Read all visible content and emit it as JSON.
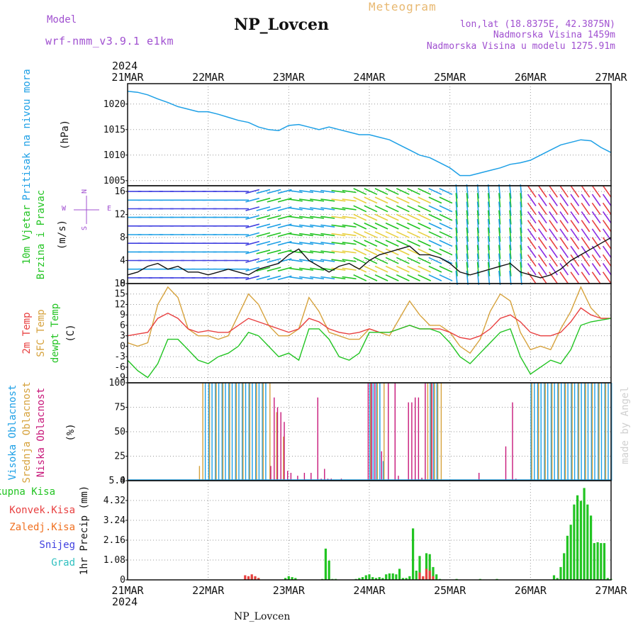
{
  "header": {
    "model_label": "Model",
    "model_name": "wrf-nmm_v3.9.1 e1km",
    "station": "NP_Lovcen",
    "product": "Meteogram",
    "lonlat": "lon,lat (18.8375E, 42.3875N)",
    "elevation": "Nadmorska Visina 1459m",
    "model_elevation": "Nadmorska Visina u modelu 1275.91m",
    "year_top": "2024",
    "year_bottom": "2024",
    "footer_station": "NP_Lovcen",
    "credit": "made by Angel"
  },
  "colors": {
    "pressure": "#1ea0e6",
    "temp2m": "#e84040",
    "sfc": "#d6a23c",
    "dewpt": "#22c422",
    "high": "#1ea0e6",
    "mid": "#d6a23c",
    "low": "#c8187a",
    "total": "#22c422",
    "conv": "#e84040",
    "frz": "#f07020",
    "snow": "#4040e0",
    "grad": "#30c0c0",
    "model": "#a050d0",
    "meteo": "#e8b870",
    "grid": "#999999",
    "credit": "#d0d0d0"
  },
  "chart_data": [
    {
      "type": "line",
      "title": "Pritisak na nivou mora",
      "ylabel": "(hPa)",
      "xlim": [
        0,
        144
      ],
      "ylim": [
        1004,
        1024
      ],
      "yticks": [
        1005,
        1010,
        1015,
        1020
      ],
      "xticks": [
        "21MAR",
        "22MAR",
        "23MAR",
        "24MAR",
        "25MAR",
        "26MAR",
        "27MAR"
      ],
      "series": [
        {
          "name": "Pritisak na nivou mora",
          "x": [
            0,
            3,
            6,
            9,
            12,
            15,
            18,
            21,
            24,
            27,
            30,
            33,
            36,
            39,
            42,
            45,
            48,
            51,
            54,
            57,
            60,
            63,
            66,
            69,
            72,
            75,
            78,
            81,
            84,
            87,
            90,
            93,
            96,
            99,
            102,
            105,
            108,
            111,
            114,
            117,
            120,
            123,
            126,
            129,
            132,
            135,
            138,
            141,
            144
          ],
          "y": [
            1022.5,
            1022.3,
            1021.8,
            1021,
            1020.3,
            1019.5,
            1019,
            1018.5,
            1018.5,
            1018,
            1017.4,
            1016.8,
            1016.4,
            1015.5,
            1015,
            1014.8,
            1015.8,
            1016,
            1015.5,
            1015,
            1015.5,
            1015,
            1014.5,
            1014,
            1014,
            1013.5,
            1013,
            1012,
            1011,
            1010,
            1009.5,
            1008.5,
            1007.5,
            1006,
            1006,
            1006.5,
            1007,
            1007.5,
            1008.2,
            1008.5,
            1009,
            1010,
            1011,
            1012,
            1012.5,
            1013,
            1012.8,
            1011.5,
            1010.5
          ]
        }
      ]
    },
    {
      "type": "line",
      "title": "10m Vjetar Brzina i Pravac",
      "ylabel": "(m/s)",
      "compass": [
        "N",
        "E",
        "S",
        "W"
      ],
      "ylim": [
        0,
        17
      ],
      "yticks": [
        0,
        4,
        8,
        12,
        16
      ],
      "series": [
        {
          "name": "10m Vjetar",
          "x": [
            0,
            3,
            6,
            9,
            12,
            15,
            18,
            21,
            24,
            27,
            30,
            33,
            36,
            39,
            42,
            45,
            48,
            51,
            54,
            57,
            60,
            63,
            66,
            69,
            72,
            75,
            78,
            81,
            84,
            87,
            90,
            93,
            96,
            99,
            102,
            105,
            108,
            111,
            114,
            117,
            120,
            123,
            126,
            129,
            132,
            135,
            138,
            141,
            144
          ],
          "y": [
            1.5,
            2,
            3,
            3.5,
            2.5,
            3,
            2,
            2,
            1.5,
            2,
            2.5,
            2,
            1.5,
            2.5,
            3,
            3.5,
            5,
            6,
            4,
            3,
            2,
            3,
            3.5,
            2.5,
            4,
            5,
            5.5,
            6,
            6.5,
            5,
            5,
            4.5,
            3.5,
            2,
            1.5,
            2,
            2.5,
            3,
            3.5,
            2,
            1.5,
            1,
            1.5,
            2.5,
            4,
            5,
            6,
            7,
            8
          ]
        }
      ]
    },
    {
      "type": "line",
      "ylabel": "(C)",
      "ylim": [
        -10.5,
        18
      ],
      "yticks": [
        -9,
        -6,
        -3,
        0,
        3,
        6,
        9,
        12,
        15,
        18
      ],
      "series": [
        {
          "name": "2m Temp",
          "x": [
            0,
            3,
            6,
            9,
            12,
            15,
            18,
            21,
            24,
            27,
            30,
            33,
            36,
            39,
            42,
            45,
            48,
            51,
            54,
            57,
            60,
            63,
            66,
            69,
            72,
            75,
            78,
            81,
            84,
            87,
            90,
            93,
            96,
            99,
            102,
            105,
            108,
            111,
            114,
            117,
            120,
            123,
            126,
            129,
            132,
            135,
            138,
            141,
            144
          ],
          "y": [
            3,
            3.5,
            4,
            8,
            9.5,
            8,
            5,
            4,
            4.5,
            4,
            4,
            6,
            8,
            7,
            6,
            5,
            4,
            5,
            8,
            7,
            5,
            4,
            3.5,
            4,
            5,
            4,
            4,
            5,
            6,
            5,
            5,
            5,
            4,
            2.5,
            2,
            3,
            5,
            8,
            9,
            7,
            4,
            3,
            3,
            4,
            7,
            11,
            9,
            8,
            8
          ]
        },
        {
          "name": "SFC Temp",
          "x": [
            0,
            3,
            6,
            9,
            12,
            15,
            18,
            21,
            24,
            27,
            30,
            33,
            36,
            39,
            42,
            45,
            48,
            51,
            54,
            57,
            60,
            63,
            66,
            69,
            72,
            75,
            78,
            81,
            84,
            87,
            90,
            93,
            96,
            99,
            102,
            105,
            108,
            111,
            114,
            117,
            120,
            123,
            126,
            129,
            132,
            135,
            138,
            141,
            144
          ],
          "y": [
            1,
            0,
            1,
            12,
            17,
            14,
            5,
            3,
            3,
            2,
            3,
            9,
            15,
            12,
            6,
            3,
            3,
            5,
            14,
            10,
            4,
            3,
            2,
            2,
            5,
            4,
            3,
            8,
            13,
            9,
            6,
            6,
            4,
            0,
            -2,
            2,
            10,
            15,
            13,
            4,
            -1,
            0,
            -1,
            5,
            10,
            17,
            11,
            8,
            8
          ]
        },
        {
          "name": "dewpt Temp",
          "x": [
            0,
            3,
            6,
            9,
            12,
            15,
            18,
            21,
            24,
            27,
            30,
            33,
            36,
            39,
            42,
            45,
            48,
            51,
            54,
            57,
            60,
            63,
            66,
            69,
            72,
            75,
            78,
            81,
            84,
            87,
            90,
            93,
            96,
            99,
            102,
            105,
            108,
            111,
            114,
            117,
            120,
            123,
            126,
            129,
            132,
            135,
            138,
            141,
            144
          ],
          "y": [
            -4,
            -7,
            -9,
            -5,
            2,
            2,
            -1,
            -4,
            -5,
            -3,
            -2,
            0,
            4,
            3,
            0,
            -3,
            -2,
            -4,
            5,
            5,
            2,
            -3,
            -4,
            -2,
            4,
            4,
            4,
            5,
            6,
            5,
            5,
            4,
            1,
            -3,
            -5,
            -2,
            1,
            4,
            5,
            -3,
            -8,
            -6,
            -4,
            -5,
            -1,
            6,
            7,
            7.5,
            8
          ]
        }
      ]
    },
    {
      "type": "bar",
      "ylabel": "(%)",
      "ylim": [
        0,
        100
      ],
      "yticks": [
        0,
        25,
        50,
        75,
        100
      ],
      "series": [
        {
          "name": "Visoka Oblacnost",
          "x": [
            21,
            22,
            23,
            24,
            25,
            26,
            27,
            28,
            29,
            30,
            31,
            32,
            33,
            34,
            35,
            36,
            37,
            38,
            39,
            40,
            41,
            42,
            72,
            73,
            74,
            75,
            76,
            86,
            87,
            88,
            89,
            90,
            91,
            92,
            120,
            121,
            122,
            123,
            124,
            125,
            126,
            127,
            128,
            129,
            130,
            131,
            132,
            133,
            134,
            135,
            136,
            137,
            138,
            139,
            140,
            141,
            142,
            143,
            144
          ],
          "y": [
            0,
            0,
            100,
            100,
            100,
            100,
            100,
            100,
            100,
            100,
            100,
            100,
            100,
            100,
            100,
            100,
            100,
            100,
            100,
            100,
            100,
            0,
            100,
            100,
            100,
            100,
            20,
            0,
            0,
            0,
            0,
            100,
            100,
            100,
            100,
            100,
            100,
            100,
            100,
            100,
            100,
            100,
            100,
            100,
            100,
            100,
            100,
            100,
            100,
            100,
            100,
            100,
            100,
            100,
            100,
            100,
            100,
            100,
            100
          ]
        },
        {
          "name": "Srednja Oblacnost",
          "x": [
            21,
            22,
            24,
            26,
            28,
            30,
            32,
            34,
            36,
            38,
            40,
            42,
            44,
            46,
            72,
            74,
            76,
            89,
            90,
            91,
            92,
            93,
            120,
            122,
            124,
            126,
            128,
            130,
            132,
            134,
            136,
            138,
            140,
            142
          ],
          "y": [
            15,
            100,
            100,
            100,
            100,
            100,
            100,
            100,
            100,
            100,
            100,
            100,
            70,
            45,
            100,
            100,
            100,
            100,
            100,
            100,
            100,
            100,
            100,
            100,
            100,
            100,
            100,
            100,
            100,
            100,
            100,
            100,
            100,
            100
          ]
        },
        {
          "name": "Niska Oblacnost",
          "x": [
            42,
            43,
            44,
            45,
            46,
            47,
            48,
            50,
            52,
            54,
            56,
            57,
            58,
            59,
            60,
            63,
            71,
            72,
            73,
            75,
            77,
            79,
            80,
            83,
            84,
            85,
            86,
            87,
            88,
            90,
            104,
            112,
            114,
            115
          ],
          "y": [
            15,
            85,
            75,
            70,
            60,
            10,
            8,
            5,
            8,
            8,
            85,
            2,
            12,
            2,
            2,
            2,
            100,
            100,
            100,
            30,
            100,
            100,
            5,
            80,
            80,
            85,
            85,
            3,
            100,
            100,
            8,
            35,
            80,
            2
          ]
        }
      ]
    },
    {
      "type": "bar",
      "ylabel": "1hr Precip (mm)",
      "ylim": [
        0,
        5.4
      ],
      "yticks": [
        0,
        1.08,
        2.16,
        3.24,
        4.32,
        5.4
      ],
      "series": [
        {
          "name": "Ukupna Kisa",
          "x": [
            35,
            36,
            37,
            38,
            39,
            47,
            48,
            49,
            50,
            58,
            59,
            60,
            61,
            62,
            68,
            69,
            70,
            71,
            72,
            73,
            74,
            75,
            76,
            77,
            78,
            79,
            80,
            81,
            82,
            83,
            84,
            85,
            86,
            87,
            88,
            89,
            90,
            91,
            92,
            93,
            98,
            105,
            110,
            127,
            128,
            129,
            130,
            131,
            132,
            133,
            134,
            135,
            136,
            137,
            138,
            139,
            140,
            141,
            142,
            143,
            144
          ],
          "y": [
            0.05,
            0.1,
            0.2,
            0.15,
            0.1,
            0.1,
            0.2,
            0.15,
            0.1,
            0.05,
            1.7,
            1.05,
            0.05,
            0.05,
            0.05,
            0.1,
            0.15,
            0.25,
            0.3,
            0.15,
            0.1,
            0.15,
            0.1,
            0.3,
            0.35,
            0.35,
            0.3,
            0.6,
            0.1,
            0.1,
            0.2,
            2.8,
            0.5,
            1.3,
            0.1,
            1.45,
            1.4,
            0.7,
            0.3,
            0.05,
            0.05,
            0.05,
            0.05,
            0.25,
            0.1,
            0.7,
            1.45,
            2.4,
            3.0,
            4.1,
            4.6,
            4.3,
            5.0,
            4.1,
            3.5,
            2.0,
            2.05,
            2.0,
            2.0,
            0.1,
            0.05
          ]
        },
        {
          "name": "Konvek.Kisa",
          "x": [
            35,
            36,
            37,
            38,
            39,
            87,
            88,
            89,
            90,
            91
          ],
          "y": [
            0.25,
            0.2,
            0.3,
            0.2,
            0.1,
            0.4,
            0.2,
            0.6,
            0.5,
            0.2
          ]
        },
        {
          "name": "Zaledj.Kisa",
          "x": [],
          "y": []
        },
        {
          "name": "Snijeg",
          "x": [],
          "y": []
        },
        {
          "name": "Grad",
          "x": [],
          "y": []
        }
      ]
    }
  ]
}
